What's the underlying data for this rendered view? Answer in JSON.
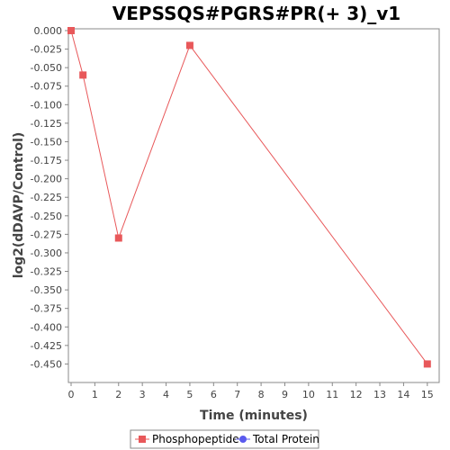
{
  "chart_data": {
    "type": "line",
    "title": "VEPSSQS#PGRS#PR(+ 3)_v1",
    "xlabel": "Time (minutes)",
    "ylabel": "log2(dDAVP/Control)",
    "xlim": [
      0,
      15.5
    ],
    "ylim": [
      -0.475,
      0.0
    ],
    "x_ticks": [
      "0",
      "1",
      "2",
      "3",
      "4",
      "5",
      "6",
      "7",
      "8",
      "9",
      "10",
      "11",
      "12",
      "13",
      "14",
      "15"
    ],
    "y_ticks": [
      "0.000",
      "-0.025",
      "-0.050",
      "-0.075",
      "-0.100",
      "-0.125",
      "-0.150",
      "-0.175",
      "-0.200",
      "-0.225",
      "-0.250",
      "-0.275",
      "-0.300",
      "-0.325",
      "-0.350",
      "-0.375",
      "-0.400",
      "-0.425",
      "-0.450"
    ],
    "grid": false,
    "legend_position": "bottom",
    "series": [
      {
        "name": "Phosphopeptide",
        "color": "#e8585a",
        "marker": "square",
        "points": [
          {
            "x": 0,
            "y": 0.0
          },
          {
            "x": 0.5,
            "y": -0.06
          },
          {
            "x": 2,
            "y": -0.28
          },
          {
            "x": 5,
            "y": -0.02
          },
          {
            "x": 15,
            "y": -0.45
          }
        ]
      },
      {
        "name": "Total Protein",
        "color": "#5a5aee",
        "marker": "circle",
        "points": []
      }
    ]
  }
}
